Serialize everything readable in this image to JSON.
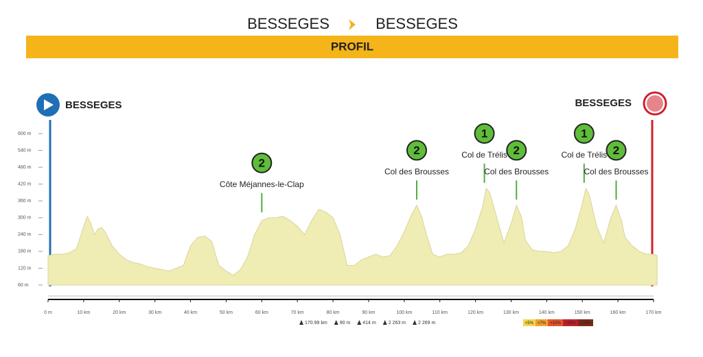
{
  "chart_data": {
    "type": "area",
    "route": {
      "from": "BESSEGES",
      "to": "BESSEGES"
    },
    "banner": "PROFIL",
    "start_label": "BESSEGES",
    "finish_label": "BESSEGES",
    "color": "#efedb4",
    "line_color": "#d9d49a",
    "x": [
      0,
      2,
      4,
      6,
      8,
      10,
      11,
      12,
      13,
      14,
      15,
      16,
      18,
      20,
      22,
      24,
      26,
      28,
      30,
      32,
      34,
      36,
      38,
      40,
      42,
      44,
      46,
      47,
      48,
      50,
      52,
      54,
      56,
      58,
      60,
      62,
      64,
      66,
      68,
      70,
      72,
      74,
      76,
      78,
      80,
      82,
      84,
      86,
      88,
      90,
      92,
      94,
      96,
      98,
      100,
      102,
      103.5,
      105,
      106,
      108,
      110,
      112,
      114,
      116,
      118,
      120,
      122,
      123,
      124,
      126,
      128,
      130,
      131.5,
      133,
      134,
      136,
      138,
      140,
      142,
      144,
      146,
      148,
      150,
      151,
      152,
      154,
      156,
      158,
      159.5,
      161,
      162,
      164,
      166,
      168,
      170,
      171
    ],
    "values": [
      165,
      170,
      170,
      175,
      190,
      270,
      305,
      280,
      240,
      260,
      265,
      250,
      200,
      170,
      150,
      140,
      135,
      125,
      120,
      115,
      110,
      120,
      130,
      200,
      230,
      235,
      215,
      170,
      130,
      110,
      95,
      115,
      160,
      240,
      290,
      300,
      300,
      305,
      290,
      270,
      240,
      290,
      330,
      320,
      300,
      240,
      130,
      130,
      150,
      160,
      170,
      160,
      165,
      200,
      250,
      310,
      345,
      300,
      250,
      170,
      160,
      170,
      170,
      175,
      200,
      260,
      340,
      405,
      390,
      300,
      210,
      280,
      345,
      300,
      220,
      185,
      180,
      180,
      175,
      180,
      200,
      260,
      350,
      405,
      380,
      270,
      210,
      300,
      345,
      290,
      230,
      200,
      180,
      170,
      170,
      165
    ],
    "xlim": [
      0,
      170
    ],
    "ylim": [
      60,
      600
    ],
    "xticks": [
      {
        "value": 0,
        "label": "0 m"
      },
      {
        "value": 10,
        "label": "10 km"
      },
      {
        "value": 20,
        "label": "20 km"
      },
      {
        "value": 30,
        "label": "30 km"
      },
      {
        "value": 40,
        "label": "40 km"
      },
      {
        "value": 50,
        "label": "50 km"
      },
      {
        "value": 60,
        "label": "60 km"
      },
      {
        "value": 70,
        "label": "70 km"
      },
      {
        "value": 80,
        "label": "80 km"
      },
      {
        "value": 90,
        "label": "90 km"
      },
      {
        "value": 100,
        "label": "100 km"
      },
      {
        "value": 110,
        "label": "110 km"
      },
      {
        "value": 120,
        "label": "120 km"
      },
      {
        "value": 130,
        "label": "130 km"
      },
      {
        "value": 140,
        "label": "140 km"
      },
      {
        "value": 150,
        "label": "150 km"
      },
      {
        "value": 160,
        "label": "160 km"
      },
      {
        "value": 170,
        "label": "170 km"
      }
    ],
    "yticks": [
      {
        "value": 60,
        "label": "60 m"
      },
      {
        "value": 120,
        "label": "120 m"
      },
      {
        "value": 180,
        "label": "180 m"
      },
      {
        "value": 240,
        "label": "240 m"
      },
      {
        "value": 300,
        "label": "300 m"
      },
      {
        "value": 360,
        "label": "360 m"
      },
      {
        "value": 420,
        "label": "420 m"
      },
      {
        "value": 480,
        "label": "480 m"
      },
      {
        "value": 540,
        "label": "540 m"
      },
      {
        "value": 600,
        "label": "600 m"
      }
    ],
    "climbs": [
      {
        "category": "2",
        "name": "Côte Méjannes-le-Clap",
        "km": 60,
        "elevation": 300
      },
      {
        "category": "2",
        "name": "Col des Brousses",
        "km": 103.5,
        "elevation": 345
      },
      {
        "category": "1",
        "name": "Col de Trélis",
        "km": 122.5,
        "elevation": 405
      },
      {
        "category": "2",
        "name": "Col des Brousses",
        "km": 131.5,
        "elevation": 345
      },
      {
        "category": "1",
        "name": "Col de Trélis",
        "km": 150.5,
        "elevation": 405
      },
      {
        "category": "2",
        "name": "Col des Brousses",
        "km": 159.5,
        "elevation": 345
      }
    ],
    "stats": [
      "170.99 km",
      "90 m",
      "414 m",
      "2 263 m",
      "2 269 m"
    ],
    "legend": [
      {
        "label": "<5%",
        "color": "#f3d54a"
      },
      {
        "label": "<7%",
        "color": "#f0a030"
      },
      {
        "label": "<10%",
        "color": "#e2552a"
      },
      {
        "label": "<15%",
        "color": "#c0202a"
      },
      {
        "label": ">15%",
        "color": "#7a2a1a"
      }
    ]
  }
}
